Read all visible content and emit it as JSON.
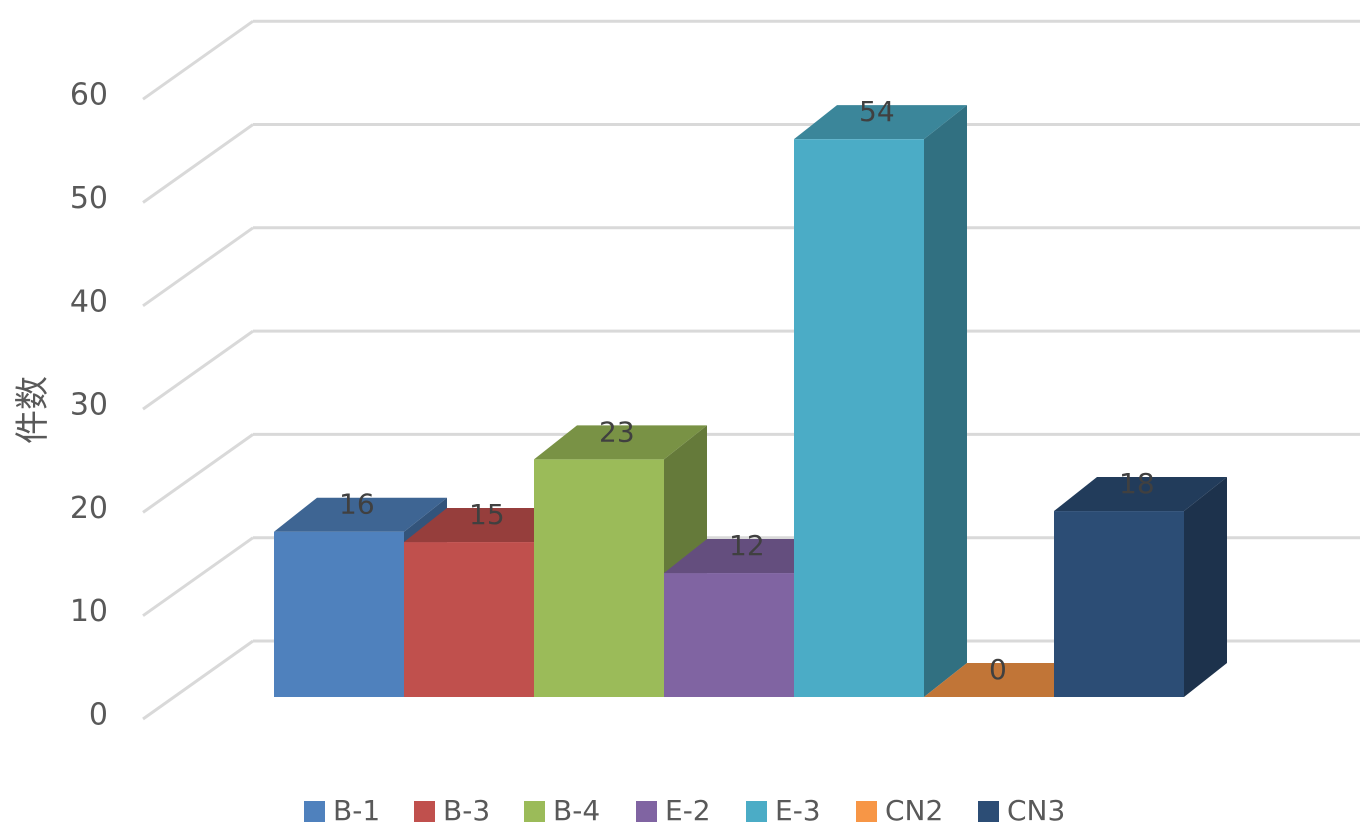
{
  "chart_data": {
    "type": "bar",
    "style": "3d-clustered-column",
    "ylabel": "件数",
    "xlabel": "",
    "title": "",
    "ylim": [
      0,
      60
    ],
    "yticks": [
      0,
      10,
      20,
      30,
      40,
      50,
      60
    ],
    "grid": true,
    "legend_position": "bottom",
    "data_labels": true,
    "series": [
      {
        "name": "B-1",
        "value": 16,
        "color": "#4F81BD"
      },
      {
        "name": "B-3",
        "value": 15,
        "color": "#C0504D"
      },
      {
        "name": "B-4",
        "value": 23,
        "color": "#9BBB59"
      },
      {
        "name": "E-2",
        "value": 12,
        "color": "#8064A2"
      },
      {
        "name": "E-3",
        "value": 54,
        "color": "#4BACC6"
      },
      {
        "name": "CN2",
        "value": 0,
        "color": "#F79646"
      },
      {
        "name": "CN3",
        "value": 18,
        "color": "#2C4D75"
      }
    ]
  }
}
